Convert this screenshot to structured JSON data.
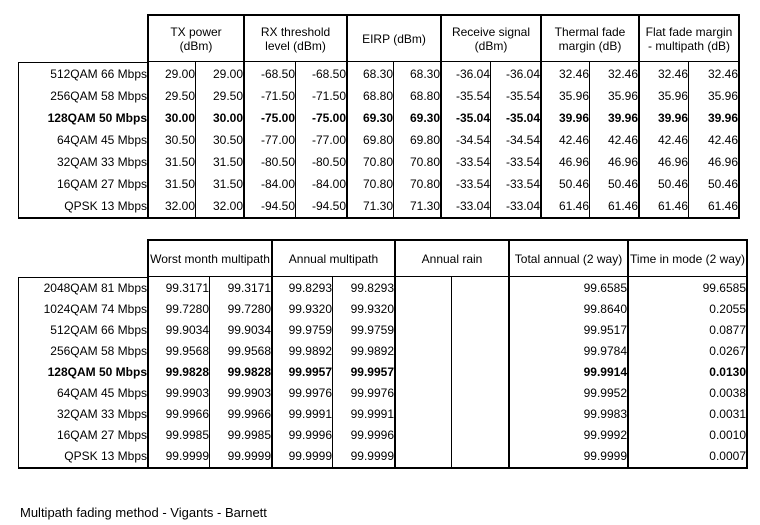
{
  "page": {
    "footer_note": "Multipath fading method - Vigants - Barnett"
  },
  "table1": {
    "column_groups": [
      {
        "label": "TX power (dBm)",
        "span": 2
      },
      {
        "label": "RX threshold level (dBm)",
        "span": 2
      },
      {
        "label": "EIRP (dBm)",
        "span": 2
      },
      {
        "label": "Receive signal (dBm)",
        "span": 2
      },
      {
        "label": "Thermal fade margin (dB)",
        "span": 2
      },
      {
        "label": "Flat fade margin - multipath (dB)",
        "span": 2
      }
    ],
    "rows": [
      {
        "label": "512QAM 66 Mbps",
        "bold": false,
        "values": [
          "29.00",
          "29.00",
          "-68.50",
          "-68.50",
          "68.30",
          "68.30",
          "-36.04",
          "-36.04",
          "32.46",
          "32.46",
          "32.46",
          "32.46"
        ]
      },
      {
        "label": "256QAM 58 Mbps",
        "bold": false,
        "values": [
          "29.50",
          "29.50",
          "-71.50",
          "-71.50",
          "68.80",
          "68.80",
          "-35.54",
          "-35.54",
          "35.96",
          "35.96",
          "35.96",
          "35.96"
        ]
      },
      {
        "label": "128QAM 50 Mbps",
        "bold": true,
        "values": [
          "30.00",
          "30.00",
          "-75.00",
          "-75.00",
          "69.30",
          "69.30",
          "-35.04",
          "-35.04",
          "39.96",
          "39.96",
          "39.96",
          "39.96"
        ]
      },
      {
        "label": "64QAM 45 Mbps",
        "bold": false,
        "values": [
          "30.50",
          "30.50",
          "-77.00",
          "-77.00",
          "69.80",
          "69.80",
          "-34.54",
          "-34.54",
          "42.46",
          "42.46",
          "42.46",
          "42.46"
        ]
      },
      {
        "label": "32QAM 33 Mbps",
        "bold": false,
        "values": [
          "31.50",
          "31.50",
          "-80.50",
          "-80.50",
          "70.80",
          "70.80",
          "-33.54",
          "-33.54",
          "46.96",
          "46.96",
          "46.96",
          "46.96"
        ]
      },
      {
        "label": "16QAM 27 Mbps",
        "bold": false,
        "values": [
          "31.50",
          "31.50",
          "-84.00",
          "-84.00",
          "70.80",
          "70.80",
          "-33.54",
          "-33.54",
          "50.46",
          "50.46",
          "50.46",
          "50.46"
        ]
      },
      {
        "label": "QPSK 13 Mbps",
        "bold": false,
        "values": [
          "32.00",
          "32.00",
          "-94.50",
          "-94.50",
          "71.30",
          "71.30",
          "-33.04",
          "-33.04",
          "61.46",
          "61.46",
          "61.46",
          "61.46"
        ]
      }
    ]
  },
  "table2": {
    "column_groups": [
      {
        "label": "Worst month multipath",
        "span": 2
      },
      {
        "label": "Annual multipath",
        "span": 2
      },
      {
        "label": "Annual rain",
        "span": 2
      },
      {
        "label": "Total annual (2 way)",
        "span": 1
      },
      {
        "label": "Time in mode (2 way)",
        "span": 1
      }
    ],
    "rows": [
      {
        "label": "2048QAM 81 Mbps",
        "bold": false,
        "values": [
          "99.3171",
          "99.3171",
          "99.8293",
          "99.8293",
          "",
          "",
          "99.6585",
          "99.6585"
        ]
      },
      {
        "label": "1024QAM 74 Mbps",
        "bold": false,
        "values": [
          "99.7280",
          "99.7280",
          "99.9320",
          "99.9320",
          "",
          "",
          "99.8640",
          "0.2055"
        ]
      },
      {
        "label": "512QAM 66 Mbps",
        "bold": false,
        "values": [
          "99.9034",
          "99.9034",
          "99.9759",
          "99.9759",
          "",
          "",
          "99.9517",
          "0.0877"
        ]
      },
      {
        "label": "256QAM 58 Mbps",
        "bold": false,
        "values": [
          "99.9568",
          "99.9568",
          "99.9892",
          "99.9892",
          "",
          "",
          "99.9784",
          "0.0267"
        ]
      },
      {
        "label": "128QAM 50 Mbps",
        "bold": true,
        "values": [
          "99.9828",
          "99.9828",
          "99.9957",
          "99.9957",
          "",
          "",
          "99.9914",
          "0.0130"
        ]
      },
      {
        "label": "64QAM 45 Mbps",
        "bold": false,
        "values": [
          "99.9903",
          "99.9903",
          "99.9976",
          "99.9976",
          "",
          "",
          "99.9952",
          "0.0038"
        ]
      },
      {
        "label": "32QAM 33 Mbps",
        "bold": false,
        "values": [
          "99.9966",
          "99.9966",
          "99.9991",
          "99.9991",
          "",
          "",
          "99.9983",
          "0.0031"
        ]
      },
      {
        "label": "16QAM 27 Mbps",
        "bold": false,
        "values": [
          "99.9985",
          "99.9985",
          "99.9996",
          "99.9996",
          "",
          "",
          "99.9992",
          "0.0010"
        ]
      },
      {
        "label": "QPSK 13 Mbps",
        "bold": false,
        "values": [
          "99.9999",
          "99.9999",
          "99.9999",
          "99.9999",
          "",
          "",
          "99.9999",
          "0.0007"
        ]
      }
    ]
  }
}
